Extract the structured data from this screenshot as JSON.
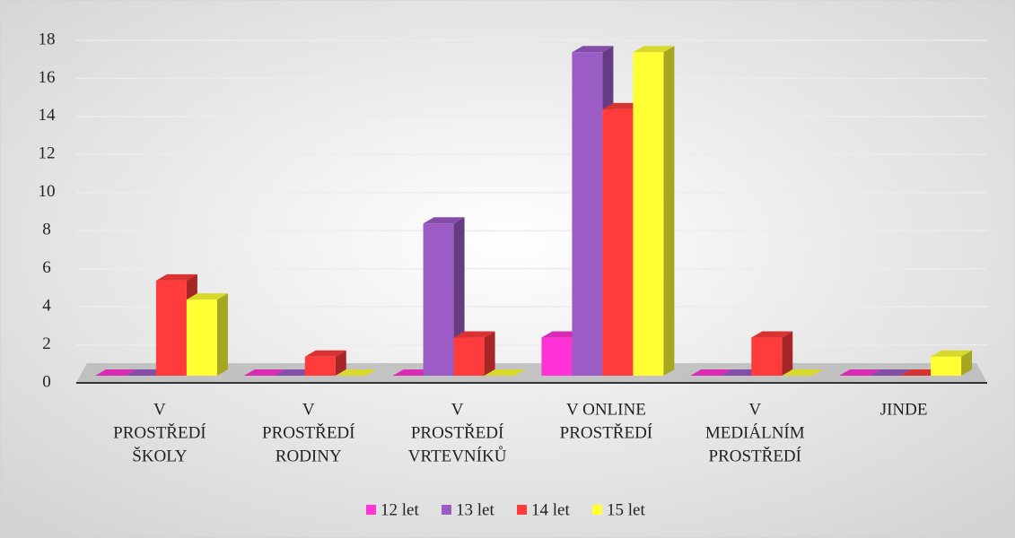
{
  "chart_data": {
    "type": "bar3d",
    "categories": [
      [
        "V",
        "PROSTŘEDÍ",
        "ŠKOLY"
      ],
      [
        "V",
        "PROSTŘEDÍ",
        "RODINY"
      ],
      [
        "V",
        "PROSTŘEDÍ",
        "VRTEVNÍKŮ"
      ],
      [
        "V ONLINE",
        "PROSTŘEDÍ"
      ],
      [
        "V",
        "MEDIÁLNÍM",
        "PROSTŘEDÍ"
      ],
      [
        "JINDE"
      ]
    ],
    "series": [
      {
        "name": "12 let",
        "color": "#ff33d6",
        "values": [
          0,
          0,
          0,
          2,
          0,
          0
        ]
      },
      {
        "name": "13 let",
        "color": "#9b5cc6",
        "values": [
          0,
          0,
          8,
          17,
          0,
          0
        ]
      },
      {
        "name": "14 let",
        "color": "#ff3b3b",
        "values": [
          5,
          1,
          2,
          14,
          2,
          0
        ]
      },
      {
        "name": "15 let",
        "color": "#ffff33",
        "values": [
          4,
          0,
          0,
          17,
          0,
          1
        ]
      }
    ],
    "ylim": [
      0,
      18
    ],
    "yticks": [
      0,
      2,
      4,
      6,
      8,
      10,
      12,
      14,
      16,
      18
    ],
    "grid": true,
    "legend": "bottom"
  }
}
